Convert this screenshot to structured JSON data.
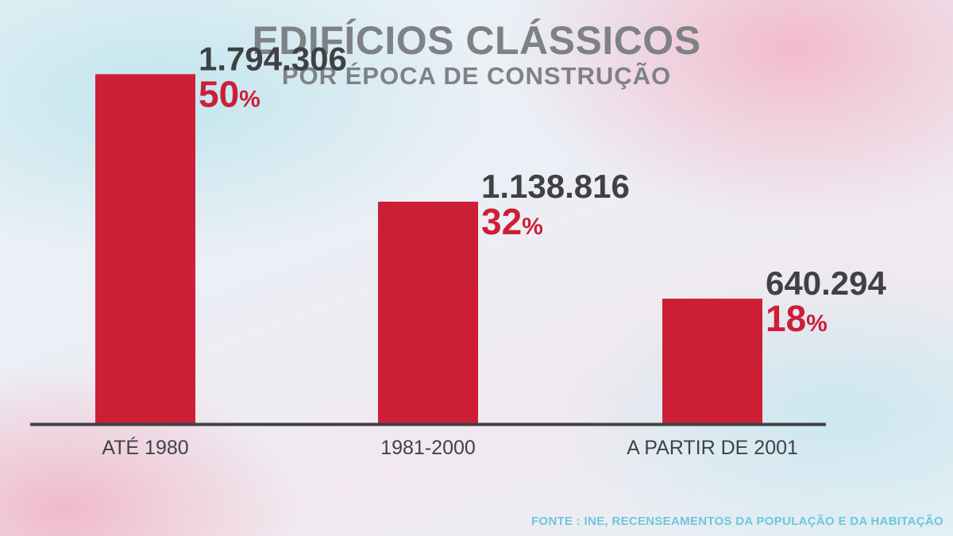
{
  "chart_data": {
    "type": "bar",
    "title": "EDIFÍCIOS CLÁSSICOS",
    "subtitle": "POR ÉPOCA DE CONSTRUÇÃO",
    "categories": [
      "ATÉ 1980",
      "1981-2000",
      "A PARTIR DE 2001"
    ],
    "values": [
      1794306,
      1138816,
      640294
    ],
    "value_labels": [
      "1.794.306",
      "1.138.816",
      "640.294"
    ],
    "percents": [
      50,
      32,
      18
    ],
    "percent_suffix": "%",
    "xlabel": "",
    "ylabel": "",
    "ylim": [
      0,
      2000000
    ],
    "grid": false,
    "legend": "none",
    "source": "FONTE : INE, RECENSEAMENTOS DA POPULAÇÃO E DA HABITAÇÃO"
  },
  "colors": {
    "bar": "#cc1f36",
    "percent": "#cc1f36",
    "value": "#3f4145",
    "axis": "#3f4145",
    "category": "#404246",
    "title": "#7e8286",
    "source": "#6fc6dd"
  }
}
